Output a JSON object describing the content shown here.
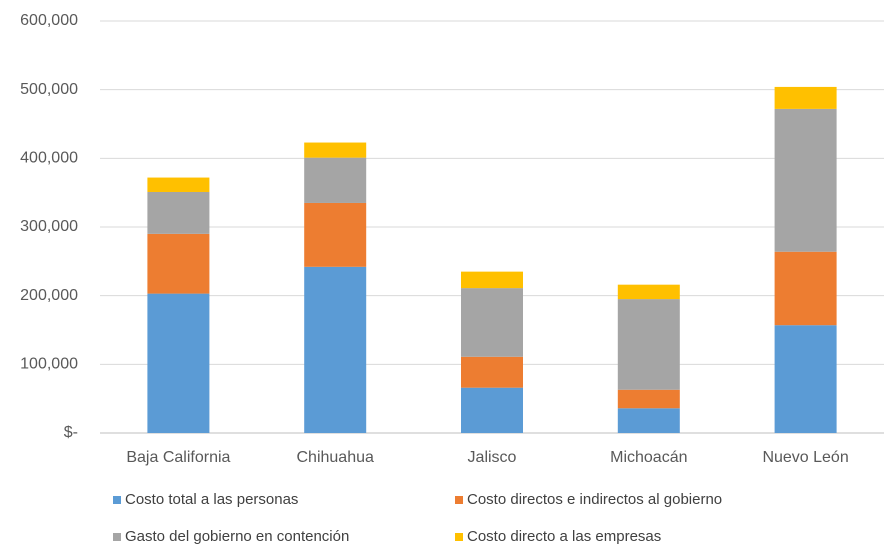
{
  "chart_data": {
    "type": "stacked_bar",
    "categories": [
      "Baja California",
      "Chihuahua",
      "Jalisco",
      "Michoacán",
      "Nuevo León"
    ],
    "series": [
      {
        "name": "Costo total a las personas",
        "color": "#5b9bd5",
        "values": [
          203000,
          242000,
          66000,
          36000,
          157000
        ]
      },
      {
        "name": "Costo directos e indirectos al gobierno",
        "color": "#ed7d31",
        "values": [
          87000,
          93000,
          45000,
          27000,
          107000
        ]
      },
      {
        "name": "Gasto del gobierno en contención",
        "color": "#a5a5a5",
        "values": [
          61000,
          66000,
          100000,
          132000,
          208000
        ]
      },
      {
        "name": "Costo directo a las empresas",
        "color": "#ffc000",
        "values": [
          21000,
          22000,
          24000,
          21000,
          32000
        ]
      }
    ],
    "ylim": [
      0,
      600000
    ],
    "yticks": [
      {
        "value": 0,
        "label": "$-"
      },
      {
        "value": 100000,
        "label": "100,000"
      },
      {
        "value": 200000,
        "label": "200,000"
      },
      {
        "value": 300000,
        "label": "300,000"
      },
      {
        "value": 400000,
        "label": "400,000"
      },
      {
        "value": 500000,
        "label": "500,000"
      },
      {
        "value": 600000,
        "label": "600,000"
      }
    ],
    "grid": true,
    "legend": "bottom"
  }
}
